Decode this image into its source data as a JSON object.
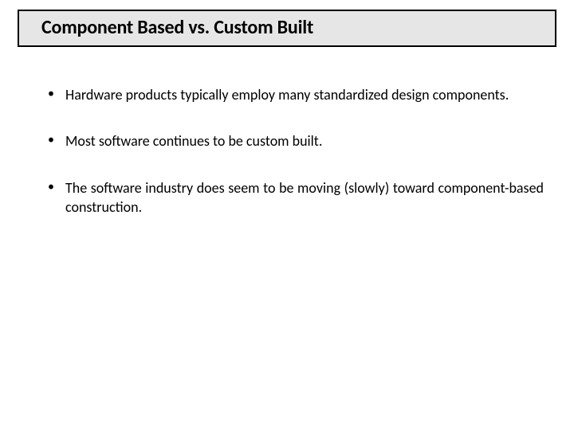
{
  "title": "Component Based vs. Custom Built",
  "bullets": [
    "Hardware products typically employ many standardized design components.",
    "Most software continues to be custom built.",
    "The software industry does seem to be moving (slowly) toward component-based construction."
  ],
  "colors": {
    "title_bg": "#e6e6e6",
    "title_border": "#000000",
    "text": "#000000",
    "background": "#ffffff"
  },
  "fonts": {
    "title_size_pt": 24,
    "title_weight": 700,
    "body_size_pt": 18,
    "body_weight": 400
  }
}
